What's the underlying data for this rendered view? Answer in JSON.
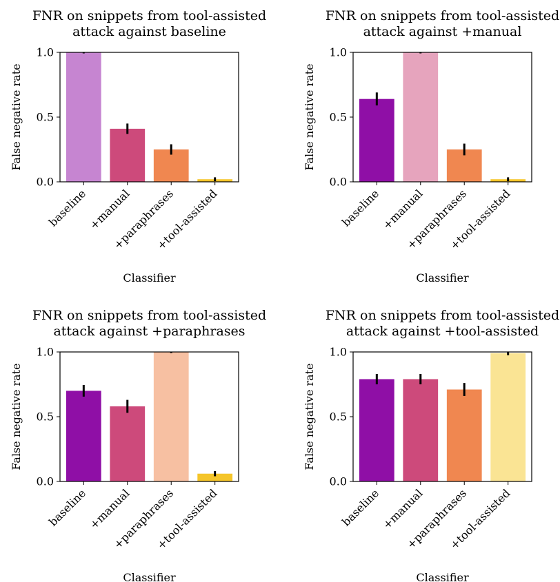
{
  "chart_data": [
    {
      "type": "bar",
      "title_lines": [
        "FNR on snippets from tool-assisted",
        "attack against baseline"
      ],
      "xlabel": "Classifier",
      "ylabel": "False negative rate",
      "categories": [
        "baseline",
        "+manual",
        "+paraphrases",
        "+tool-assisted"
      ],
      "values": [
        1.0,
        0.41,
        0.25,
        0.02
      ],
      "err": [
        0.0,
        0.04,
        0.04,
        0.015
      ],
      "colors": [
        "#c685d1",
        "#cd4a7b",
        "#f08750",
        "#f5c52a"
      ],
      "ylim": [
        0,
        1.0
      ],
      "yticks": [
        "0.0",
        "0.5",
        "1.0"
      ],
      "ytick_values": [
        0,
        0.5,
        1.0
      ],
      "grid": false
    },
    {
      "type": "bar",
      "title_lines": [
        "FNR on snippets from tool-assisted",
        "attack against +manual"
      ],
      "xlabel": "Classifier",
      "ylabel": "False negative rate",
      "categories": [
        "baseline",
        "+manual",
        "+paraphrases",
        "+tool-assisted"
      ],
      "values": [
        0.64,
        1.0,
        0.25,
        0.02
      ],
      "err": [
        0.05,
        0.0,
        0.045,
        0.015
      ],
      "colors": [
        "#8f0fa6",
        "#e6a4bd",
        "#f08750",
        "#f5c52a"
      ],
      "ylim": [
        0,
        1.0
      ],
      "yticks": [
        "0.0",
        "0.5",
        "1.0"
      ],
      "ytick_values": [
        0,
        0.5,
        1.0
      ],
      "grid": false
    },
    {
      "type": "bar",
      "title_lines": [
        "FNR on snippets from tool-assisted",
        "attack against +paraphrases"
      ],
      "xlabel": "Classifier",
      "ylabel": "False negative rate",
      "categories": [
        "baseline",
        "+manual",
        "+paraphrases",
        "+tool-assisted"
      ],
      "values": [
        0.7,
        0.58,
        1.0,
        0.06
      ],
      "err": [
        0.045,
        0.05,
        0.0,
        0.02
      ],
      "colors": [
        "#8f0fa6",
        "#cd4a7b",
        "#f7c0a2",
        "#f5c52a"
      ],
      "ylim": [
        0,
        1.0
      ],
      "yticks": [
        "0.0",
        "0.5",
        "1.0"
      ],
      "ytick_values": [
        0,
        0.5,
        1.0
      ],
      "grid": false
    },
    {
      "type": "bar",
      "title_lines": [
        "FNR on snippets from tool-assisted",
        "attack against +tool-assisted"
      ],
      "xlabel": "Classifier",
      "ylabel": "False negative rate",
      "categories": [
        "baseline",
        "+manual",
        "+paraphrases",
        "+tool-assisted"
      ],
      "values": [
        0.79,
        0.79,
        0.71,
        0.99
      ],
      "err": [
        0.04,
        0.04,
        0.05,
        0.015
      ],
      "colors": [
        "#8f0fa6",
        "#cd4a7b",
        "#f08750",
        "#fae494"
      ],
      "ylim": [
        0,
        1.0
      ],
      "yticks": [
        "0.0",
        "0.5",
        "1.0"
      ],
      "ytick_values": [
        0,
        0.5,
        1.0
      ],
      "grid": false
    }
  ]
}
